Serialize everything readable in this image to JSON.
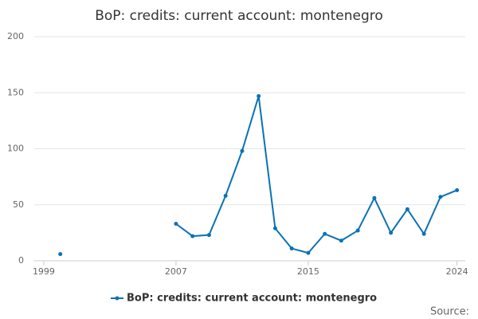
{
  "chart_data": {
    "type": "line",
    "title": "BoP: credits: current account: montenegro",
    "x": [
      2000,
      2001,
      2002,
      2003,
      2004,
      2005,
      2006,
      2007,
      2008,
      2009,
      2010,
      2011,
      2012,
      2013,
      2014,
      2015,
      2016,
      2017,
      2018,
      2019,
      2020,
      2021,
      2022,
      2023,
      2024
    ],
    "series": [
      {
        "name": "BoP: credits: current account: montenegro",
        "color": "#0b72b4",
        "values": [
          6,
          null,
          null,
          null,
          null,
          null,
          null,
          33,
          22,
          23,
          58,
          98,
          147,
          29,
          11,
          7,
          24,
          18,
          27,
          56,
          25,
          46,
          24,
          57,
          63
        ]
      }
    ],
    "xlim": [
      1998.4,
      2024.5
    ],
    "xticks": [
      1999,
      2007,
      2015,
      2024
    ],
    "ylim": [
      0,
      200
    ],
    "yticks": [
      0,
      50,
      100,
      150,
      200
    ],
    "grid": true,
    "legend": "bottom",
    "source": "Source:"
  }
}
